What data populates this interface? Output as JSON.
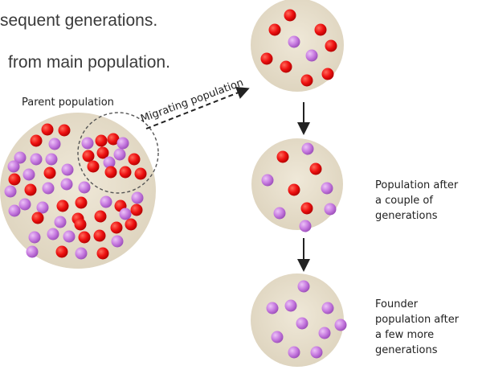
{
  "caption": {
    "line1": "sequent generations.",
    "line2": "from main population."
  },
  "labels": {
    "parent": "Parent population",
    "migrating": "Migrating population",
    "after_couple": [
      "Population after",
      "a couple of",
      "generations"
    ],
    "founder": [
      "Founder",
      "population after",
      "a few more",
      "generations"
    ]
  },
  "colors": {
    "background_circle": "#e8e0cd",
    "red_dot": "#ee1111",
    "purple_dot": "#c77be0",
    "arrow": "#222222"
  },
  "populations": {
    "parent": {
      "red": 26,
      "purple": 32
    },
    "migrating": {
      "red": 9,
      "purple": 5
    },
    "founder_group": {
      "red": 7,
      "purple": 3
    },
    "after_couple": {
      "red": 4,
      "purple": 6
    },
    "after_few_more": {
      "red": 0,
      "purple": 10
    }
  }
}
